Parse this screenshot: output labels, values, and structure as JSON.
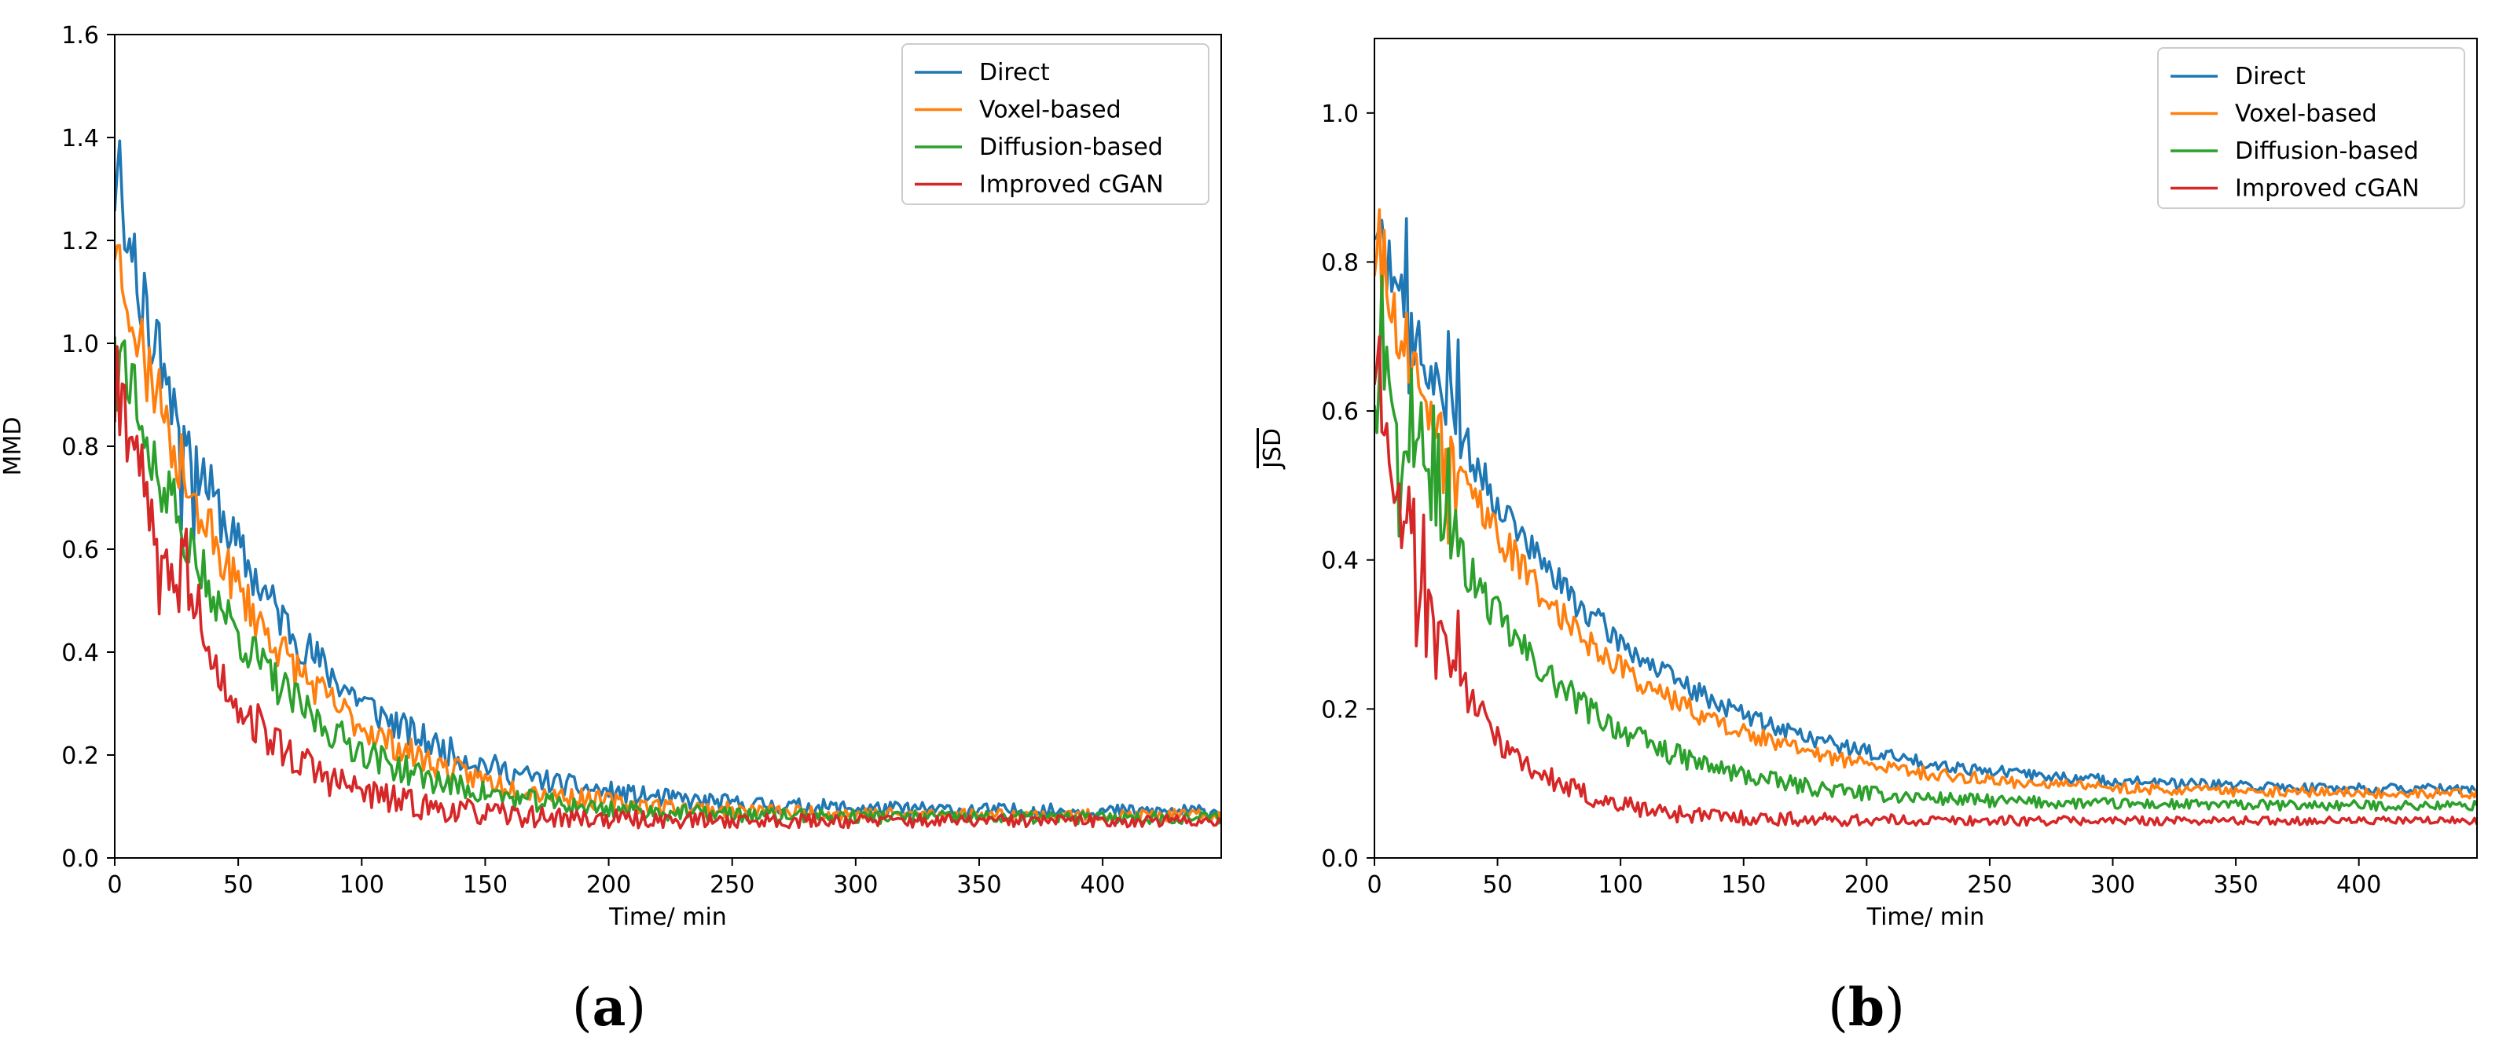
{
  "chart_data": [
    {
      "type": "line",
      "panel": "(a)",
      "title": "",
      "xlabel": "Time/ min",
      "ylabel": "MMD",
      "ylabel_overline": true,
      "xlim": [
        0,
        448
      ],
      "ylim": [
        0,
        1.6
      ],
      "xticks": [
        0,
        50,
        100,
        150,
        200,
        250,
        300,
        350,
        400
      ],
      "yticks": [
        0.0,
        0.2,
        0.4,
        0.6,
        0.8,
        1.0,
        1.2,
        1.4,
        1.6
      ],
      "ytick_labels": [
        "0.0",
        "0.2",
        "0.4",
        "0.6",
        "0.8",
        "1.0",
        "1.2",
        "1.4",
        "1.6"
      ],
      "grid": false,
      "legend_position": "top-right",
      "series": [
        {
          "name": "Direct",
          "color": "#1f77b4",
          "params": {
            "start": 1.3,
            "floor": 0.09,
            "tau": 58,
            "noise": 0.05,
            "spike": 0.18,
            "seed": 11
          }
        },
        {
          "name": "Voxel-based",
          "color": "#ff7f0e",
          "params": {
            "start": 1.2,
            "floor": 0.082,
            "tau": 54,
            "noise": 0.045,
            "spike": 0.12,
            "seed": 23
          }
        },
        {
          "name": "Diffusion-based",
          "color": "#2ca02c",
          "params": {
            "start": 1.05,
            "floor": 0.078,
            "tau": 50,
            "noise": 0.045,
            "spike": 0.12,
            "seed": 37
          }
        },
        {
          "name": "Improved cGAN",
          "color": "#d62728",
          "params": {
            "start": 1.0,
            "floor": 0.072,
            "tau": 36,
            "noise": 0.045,
            "spike": 0.15,
            "seed": 53
          }
        }
      ]
    },
    {
      "type": "line",
      "panel": "(b)",
      "title": "",
      "xlabel": "Time/ min",
      "ylabel": "JSD",
      "ylabel_overline": true,
      "xlim": [
        0,
        448
      ],
      "ylim": [
        0,
        1.1
      ],
      "xticks": [
        0,
        50,
        100,
        150,
        200,
        250,
        300,
        350,
        400
      ],
      "yticks": [
        0.0,
        0.2,
        0.4,
        0.6,
        0.8,
        1.0
      ],
      "ytick_labels": [
        "0.0",
        "0.2",
        "0.4",
        "0.6",
        "0.8",
        "1.0"
      ],
      "grid": false,
      "legend_position": "top-right",
      "series": [
        {
          "name": "Direct",
          "color": "#1f77b4",
          "params": {
            "start": 0.85,
            "floor": 0.09,
            "tau": 75,
            "noise": 0.025,
            "spike": 0.14,
            "seed": 71
          }
        },
        {
          "name": "Voxel-based",
          "color": "#ff7f0e",
          "params": {
            "start": 0.8,
            "floor": 0.085,
            "tau": 70,
            "noise": 0.025,
            "spike": 0.18,
            "seed": 89
          }
        },
        {
          "name": "Diffusion-based",
          "color": "#2ca02c",
          "params": {
            "start": 0.7,
            "floor": 0.07,
            "tau": 55,
            "noise": 0.025,
            "spike": 0.14,
            "seed": 97
          }
        },
        {
          "name": "Improved cGAN",
          "color": "#d62728",
          "params": {
            "start": 0.65,
            "floor": 0.05,
            "tau": 30,
            "noise": 0.02,
            "spike": 0.1,
            "seed": 101
          }
        }
      ]
    }
  ]
}
